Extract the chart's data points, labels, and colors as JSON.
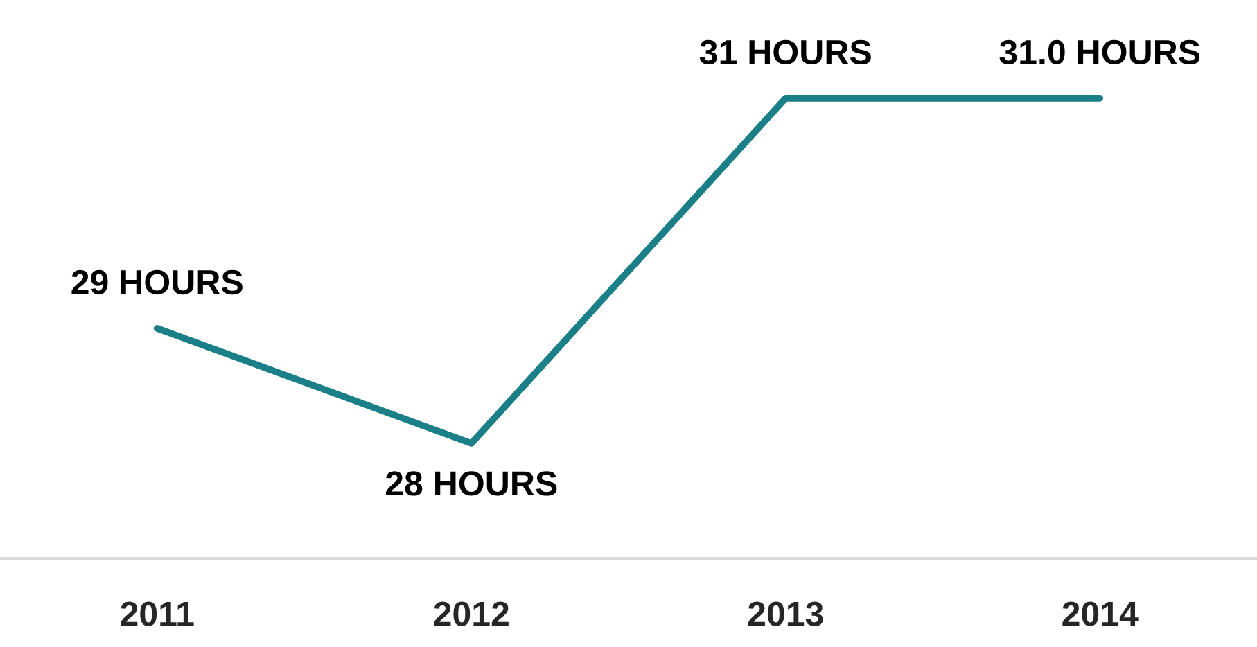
{
  "chart_data": {
    "type": "line",
    "categories": [
      "2011",
      "2012",
      "2013",
      "2014"
    ],
    "series": [
      {
        "color": "#1a7f86",
        "values": [
          29,
          28,
          31,
          31.0
        ],
        "value_labels": [
          "29 HOURS",
          "28 HOURS",
          "31 HOURS",
          "31.0 HOURS"
        ]
      }
    ],
    "grid": false,
    "legend": false,
    "marker": "none",
    "line_style": "solid",
    "tick_labels": "x"
  }
}
